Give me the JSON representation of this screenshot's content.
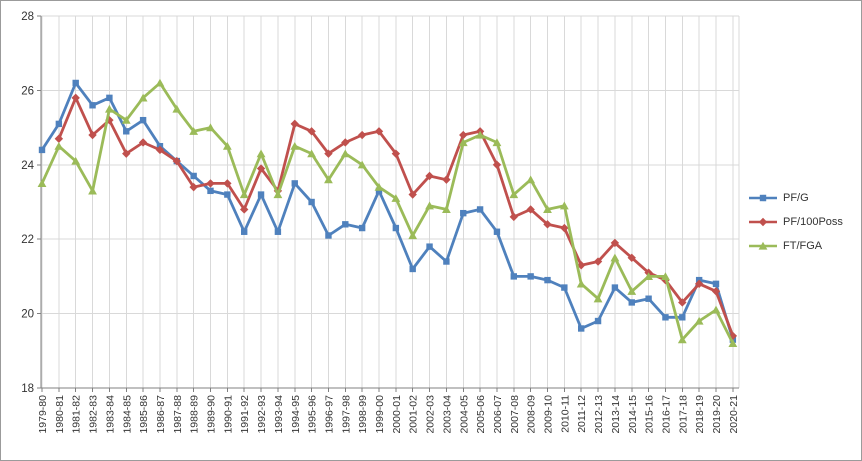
{
  "window": {
    "background": "#ffffff",
    "border_color": "#9b9b9b"
  },
  "chart_data": {
    "type": "line",
    "title": "",
    "xlabel": "",
    "ylabel": "",
    "ylim": [
      18,
      28
    ],
    "yticks": [
      18,
      20,
      22,
      24,
      26,
      28
    ],
    "grid": true,
    "legend_position": "right",
    "axis_color": "#808080",
    "gridline_color": "#d9d9d9",
    "label_color": "#333333",
    "categories": [
      "1979-80",
      "1980-81",
      "1981-82",
      "1982-83",
      "1983-84",
      "1984-85",
      "1985-86",
      "1986-87",
      "1987-88",
      "1988-89",
      "1989-90",
      "1990-91",
      "1991-92",
      "1992-93",
      "1993-94",
      "1994-95",
      "1995-96",
      "1996-97",
      "1997-98",
      "1998-99",
      "1999-00",
      "2000-01",
      "2001-02",
      "2002-03",
      "2003-04",
      "2004-05",
      "2005-06",
      "2006-07",
      "2007-08",
      "2008-09",
      "2009-10",
      "2010-11",
      "2011-12",
      "2012-13",
      "2013-14",
      "2014-15",
      "2015-16",
      "2016-17",
      "2017-18",
      "2018-19",
      "2019-20",
      "2020-21"
    ],
    "series": [
      {
        "name": "PF/G",
        "color": "#4f81bd",
        "marker": "square",
        "values": [
          24.4,
          25.1,
          26.2,
          25.6,
          25.8,
          24.9,
          25.2,
          24.5,
          24.1,
          23.7,
          23.3,
          23.2,
          22.2,
          23.2,
          22.2,
          23.5,
          23.0,
          22.1,
          22.4,
          22.3,
          23.3,
          22.3,
          21.2,
          21.8,
          21.4,
          22.7,
          22.8,
          22.2,
          21.0,
          21.0,
          20.9,
          20.7,
          19.6,
          19.8,
          20.7,
          20.3,
          20.4,
          19.9,
          19.9,
          20.9,
          20.8,
          19.3
        ]
      },
      {
        "name": "PF/100Poss",
        "color": "#c0504d",
        "marker": "diamond",
        "values": [
          null,
          24.7,
          25.8,
          24.8,
          25.2,
          24.3,
          24.6,
          24.4,
          24.1,
          23.4,
          23.5,
          23.5,
          22.8,
          23.9,
          23.3,
          25.1,
          24.9,
          24.3,
          24.6,
          24.8,
          24.9,
          24.3,
          23.2,
          23.7,
          23.6,
          24.8,
          24.9,
          24.0,
          22.6,
          22.8,
          22.4,
          22.3,
          21.3,
          21.4,
          21.9,
          21.5,
          21.1,
          20.9,
          20.3,
          20.8,
          20.6,
          19.4
        ]
      },
      {
        "name": "FT/FGA",
        "color": "#9bbb59",
        "marker": "triangle",
        "values": [
          23.5,
          24.5,
          24.1,
          23.3,
          25.5,
          25.2,
          25.8,
          26.2,
          25.5,
          24.9,
          25.0,
          24.5,
          23.2,
          24.3,
          23.2,
          24.5,
          24.3,
          23.6,
          24.3,
          24.0,
          23.4,
          23.1,
          22.1,
          22.9,
          22.8,
          24.6,
          24.8,
          24.6,
          23.2,
          23.6,
          22.8,
          22.9,
          20.8,
          20.4,
          21.5,
          20.6,
          21.0,
          21.0,
          19.3,
          19.8,
          20.1,
          19.2
        ]
      }
    ]
  }
}
